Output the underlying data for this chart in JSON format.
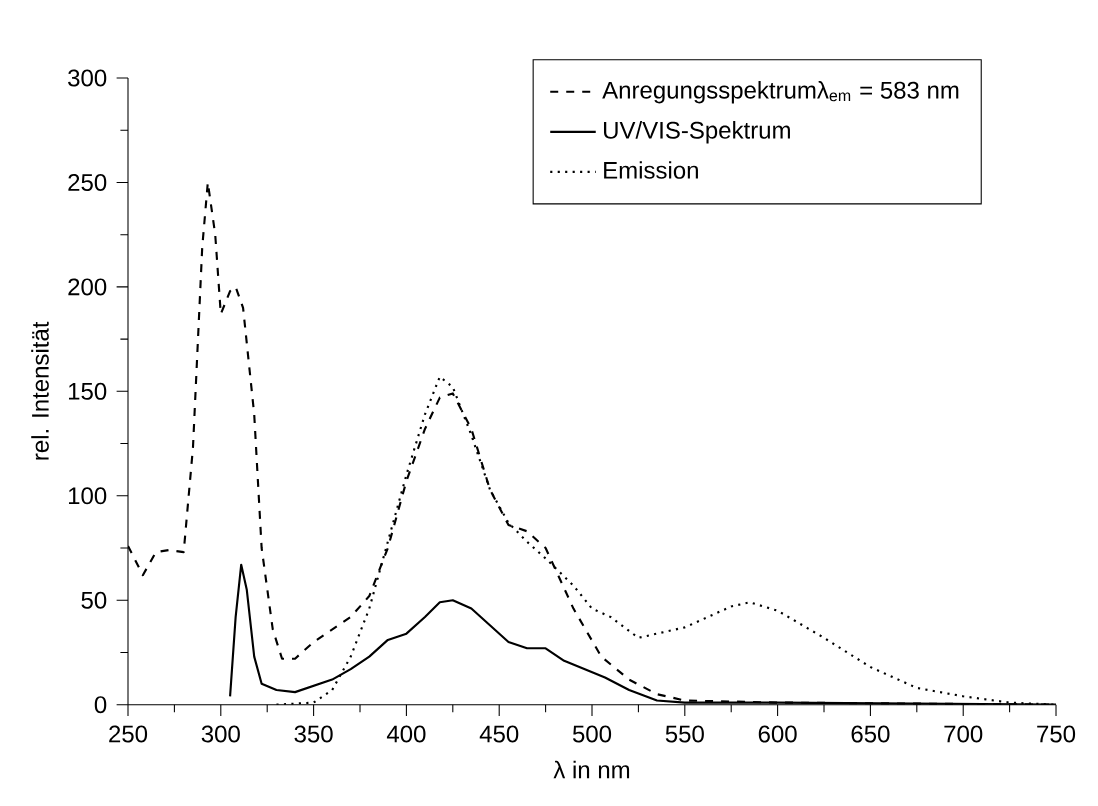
{
  "chart_data": {
    "type": "line",
    "xlabel": "λ in nm",
    "ylabel": "rel. Intensität",
    "xlim": [
      250,
      750
    ],
    "ylim": [
      0,
      300
    ],
    "xticks": [
      250,
      300,
      350,
      400,
      450,
      500,
      550,
      600,
      650,
      700,
      750
    ],
    "yticks": [
      0,
      50,
      100,
      150,
      200,
      250,
      300
    ],
    "grid": false,
    "legend": "top right",
    "marker": "none",
    "series": [
      {
        "name": "Anregungsspektrumλ$_{em}$ = 583 nm",
        "color": "#000000",
        "line_style": "dashed",
        "x": [
          250,
          258,
          265,
          272,
          280,
          285,
          290,
          293,
          297,
          300,
          305,
          308,
          312,
          318,
          322,
          328,
          333,
          340,
          350,
          360,
          370,
          380,
          390,
          400,
          410,
          418,
          425,
          435,
          445,
          455,
          465,
          475,
          490,
          505,
          520,
          535,
          550,
          600,
          750
        ],
        "values": [
          76,
          62,
          73,
          74,
          73,
          123,
          219,
          250,
          225,
          187,
          198,
          200,
          190,
          139,
          75,
          36,
          22,
          22,
          30,
          36,
          42,
          52,
          75,
          107,
          132,
          147,
          149,
          132,
          103,
          86,
          83,
          75,
          46,
          23,
          12,
          5,
          2,
          1,
          0
        ]
      },
      {
        "name": "UV/VIS-Spektrum",
        "color": "#000000",
        "line_style": "solid",
        "x": [
          305,
          308,
          311,
          314,
          318,
          322,
          330,
          340,
          350,
          360,
          370,
          380,
          390,
          400,
          410,
          418,
          425,
          435,
          445,
          455,
          465,
          475,
          485,
          507,
          520,
          535,
          550,
          600,
          750
        ],
        "values": [
          4,
          42,
          67,
          55,
          23,
          10,
          7,
          6,
          9,
          12,
          17,
          23,
          31,
          34,
          42,
          49,
          50,
          46,
          38,
          30,
          27,
          27,
          21,
          13,
          7,
          2,
          1,
          1,
          0
        ]
      },
      {
        "name": "Emission",
        "color": "#000000",
        "line_style": "dotted",
        "x": [
          330,
          350,
          360,
          370,
          380,
          390,
          400,
          410,
          418,
          425,
          435,
          445,
          455,
          465,
          475,
          490,
          500,
          510,
          525,
          550,
          575,
          585,
          600,
          625,
          650,
          675,
          700,
          725,
          750
        ],
        "values": [
          0,
          1,
          7,
          23,
          46,
          78,
          110,
          139,
          157,
          152,
          129,
          103,
          87,
          78,
          70,
          57,
          46,
          42,
          32,
          37,
          47,
          49,
          45,
          32,
          18,
          8,
          4,
          1,
          0
        ]
      }
    ]
  }
}
